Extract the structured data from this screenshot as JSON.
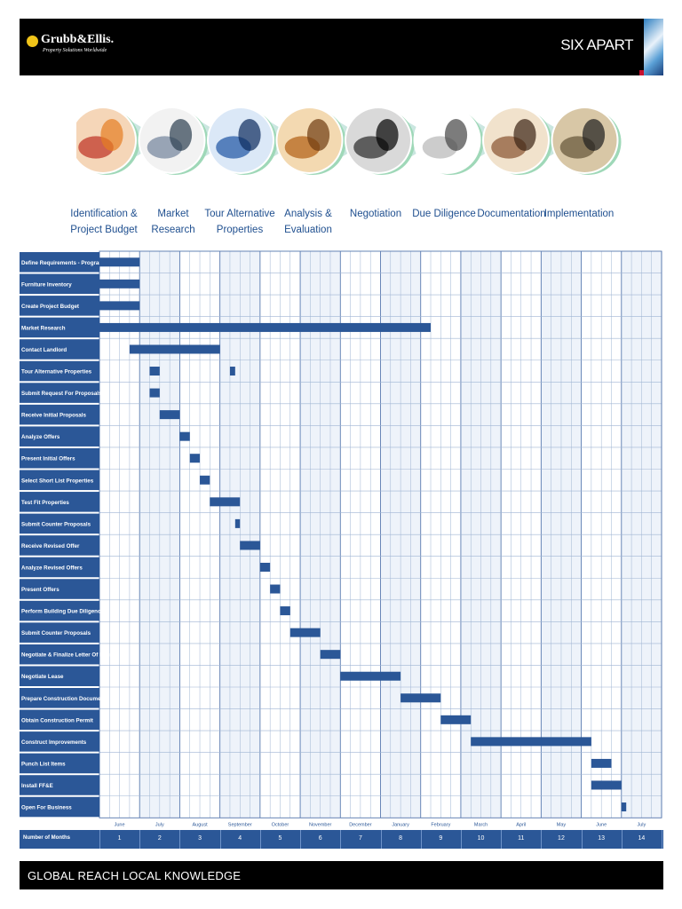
{
  "header": {
    "company": "Grubb&Ellis.",
    "company_tagline": "Property Solutions Worldwide",
    "client": "SIX APART"
  },
  "phases": [
    {
      "label": "Identification & Project Budget",
      "icon": "handshake-papers-photo"
    },
    {
      "label": "Market Research",
      "icon": "pen-on-stock-chart-photo"
    },
    {
      "label": "Tour Alternative Properties",
      "icon": "office-building-photo"
    },
    {
      "label": "Analysis & Evaluation",
      "icon": "pen-and-calculations-photo"
    },
    {
      "label": "Negotiation",
      "icon": "meeting-room-photo"
    },
    {
      "label": "Due Diligence",
      "icon": "magnifying-glass-photo"
    },
    {
      "label": "Documentation",
      "icon": "signing-pen-photo"
    },
    {
      "label": "Implementation",
      "icon": "handshake-photo"
    }
  ],
  "chart_data": {
    "type": "gantt",
    "x_tick_labels": [
      "June",
      "July",
      "August",
      "September",
      "October",
      "November",
      "December",
      "January",
      "February",
      "March",
      "April",
      "May",
      "June",
      "July"
    ],
    "number_of_months_label": "Number of Months",
    "number_of_months": [
      "1",
      "2",
      "3",
      "4",
      "5",
      "6",
      "7",
      "8",
      "9",
      "10",
      "11",
      "12",
      "13",
      "14"
    ],
    "units": "months from start (0 = start of June)",
    "tasks": [
      {
        "name": "Define Requirements - Program Report",
        "start": 0.0,
        "end": 1.0
      },
      {
        "name": "Furniture Inventory",
        "start": 0.0,
        "end": 1.0
      },
      {
        "name": "Create Project Budget",
        "start": 0.0,
        "end": 1.0
      },
      {
        "name": "Market Research",
        "start": 0.0,
        "end": 8.25
      },
      {
        "name": "Contact Landlord",
        "start": 0.75,
        "end": 3.0
      },
      {
        "name": "Tour Alternative Properties",
        "segments": [
          [
            1.25,
            1.5
          ],
          [
            3.25,
            3.38
          ]
        ]
      },
      {
        "name": "Submit Request For Proposals",
        "start": 1.25,
        "end": 1.5
      },
      {
        "name": "Receive Initial Proposals",
        "start": 1.5,
        "end": 2.0
      },
      {
        "name": "Analyze Offers",
        "start": 2.0,
        "end": 2.25
      },
      {
        "name": "Present Initial Offers",
        "start": 2.25,
        "end": 2.5
      },
      {
        "name": "Select Short List Properties",
        "start": 2.5,
        "end": 2.75
      },
      {
        "name": "Test Fit Properties",
        "start": 2.75,
        "end": 3.5
      },
      {
        "name": "Submit Counter Proposals",
        "start": 3.38,
        "end": 3.5
      },
      {
        "name": "Receive Revised Offer",
        "start": 3.5,
        "end": 4.0
      },
      {
        "name": "Analyze Revised Offers",
        "start": 4.0,
        "end": 4.25
      },
      {
        "name": "Present Offers",
        "start": 4.25,
        "end": 4.5
      },
      {
        "name": "Perform Building Due Diligence",
        "start": 4.5,
        "end": 4.75
      },
      {
        "name": "Submit Counter Proposals",
        "start": 4.75,
        "end": 5.5
      },
      {
        "name": "Negotiate & Finalize Letter Of Intent",
        "start": 5.5,
        "end": 6.0
      },
      {
        "name": "Negotiate Lease",
        "start": 6.0,
        "end": 7.5
      },
      {
        "name": "Prepare Construction Documents",
        "start": 7.5,
        "end": 8.5
      },
      {
        "name": "Obtain Construction Permit",
        "start": 8.5,
        "end": 9.25
      },
      {
        "name": "Construct Improvements",
        "start": 9.25,
        "end": 12.25
      },
      {
        "name": "Punch List Items",
        "start": 12.25,
        "end": 12.75
      },
      {
        "name": "Install FF&E",
        "start": 12.25,
        "end": 13.0
      },
      {
        "name": "Open For Business",
        "start": 13.0,
        "end": 13.12
      }
    ],
    "bar_color": "#2b5797",
    "row_label_color": "#2b5797"
  },
  "footer": {
    "tagline_a": "GLOBAL REACH",
    "tagline_b": "LOCAL KNOWLEDGE"
  }
}
